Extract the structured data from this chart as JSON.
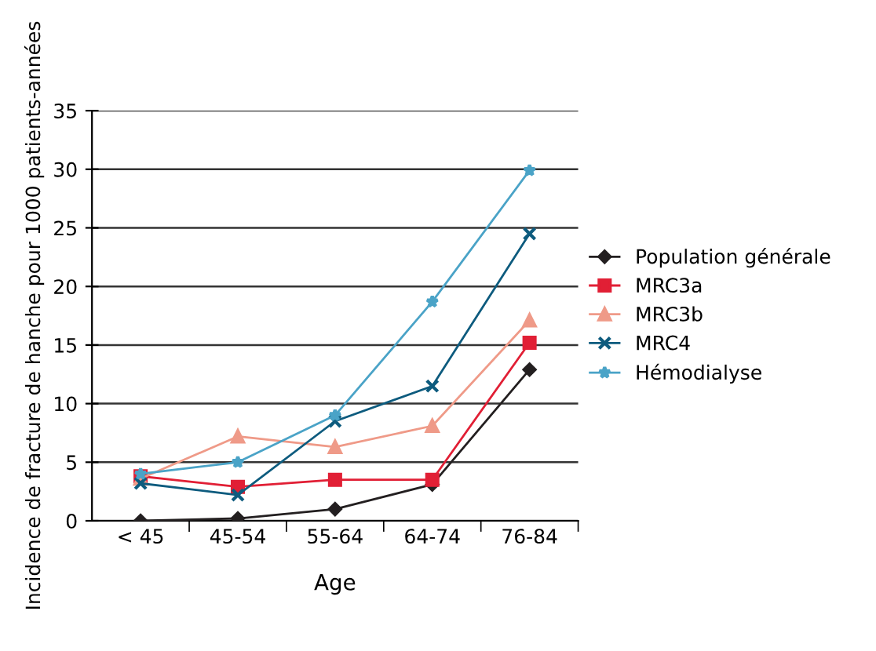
{
  "chart_data": {
    "type": "line",
    "xlabel": "Age",
    "ylabel": "Incidence de fracture de hanche pour 1000 patients-années",
    "categories": [
      "< 45",
      "45-54",
      "55-64",
      "64-74",
      "76-84"
    ],
    "series": [
      {
        "name": "Population générale",
        "color": "#231f20",
        "marker": "diamond",
        "values": [
          0,
          0.2,
          1,
          3.1,
          12.9
        ]
      },
      {
        "name": "MRC3a",
        "color": "#e11f35",
        "marker": "square",
        "values": [
          3.8,
          2.9,
          3.5,
          3.5,
          15.2
        ]
      },
      {
        "name": "MRC3b",
        "color": "#ef9a88",
        "marker": "triangle",
        "values": [
          3.6,
          7.2,
          6.3,
          8.1,
          17.1
        ]
      },
      {
        "name": "MRC4",
        "color": "#0d5b7e",
        "marker": "cross",
        "values": [
          3.2,
          2.2,
          8.5,
          11.5,
          24.5
        ]
      },
      {
        "name": "Hémodialyse",
        "color": "#4aa3c7",
        "marker": "star",
        "values": [
          4,
          5,
          9,
          18.7,
          29.9
        ]
      }
    ],
    "ylim": [
      0,
      35
    ],
    "yticks": [
      0,
      5,
      10,
      15,
      20,
      25,
      30,
      35
    ],
    "grid": "y",
    "legend": "right",
    "line_style": "solid"
  }
}
